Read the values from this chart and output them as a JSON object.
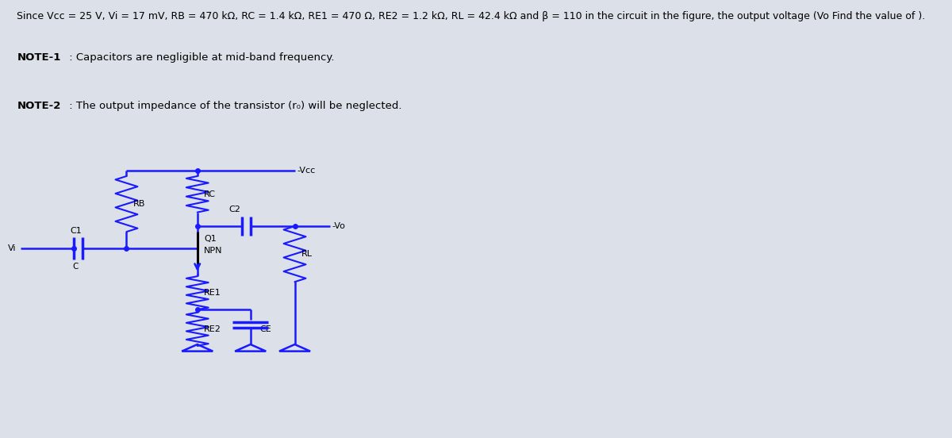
{
  "title_line": "Since Vcc = 25 V, Vi = 17 mV, RB = 470 kΩ, RC = 1.4 kΩ, RE1 = 470 Ω, RE2 = 1.2 kΩ, RL = 42.4 kΩ and β = 110 in the circuit in the figure, the output voltage (Vo Find the value of ).",
  "note1_bold": "NOTE-1",
  "note1_rest": " : Capacitors are negligible at mid-band frequency.",
  "note2_bold": "NOTE-2",
  "note2_rest": " : The output impedance of the transistor (r₀) will be neglected.",
  "bg_color": "#bebebe",
  "page_bg": "#dce0e8",
  "wire_color": "#1a1aff",
  "text_color": "#000000",
  "resistor_color": "#1a1aff",
  "cap_color": "#1a1aff"
}
